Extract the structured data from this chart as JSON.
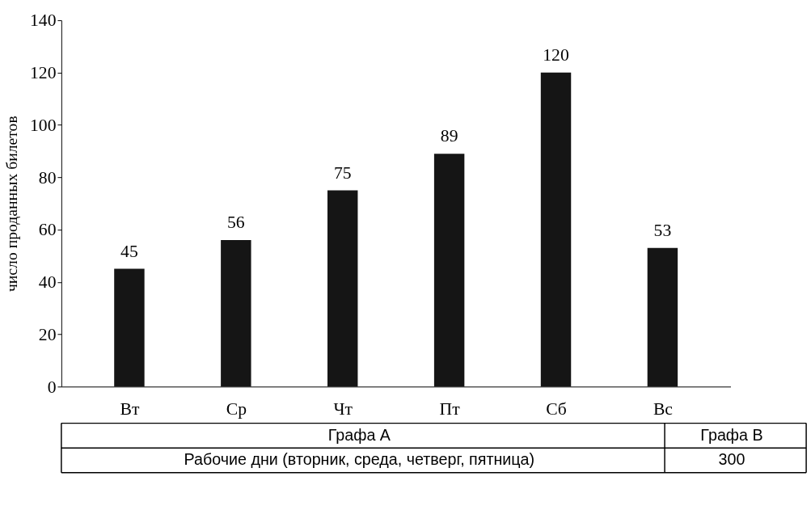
{
  "chart_data": {
    "type": "bar",
    "ylabel": "число проданных билетов",
    "categories": [
      "Вт",
      "Ср",
      "Чт",
      "Пт",
      "Сб",
      "Вс"
    ],
    "values": [
      45,
      56,
      75,
      89,
      120,
      53
    ],
    "color": "#151515",
    "ylim": [
      0,
      140
    ],
    "yticks": [
      0,
      20,
      40,
      60,
      80,
      100,
      120,
      140
    ],
    "grid": false,
    "data_labels": true,
    "annotations": [
      "Графа А",
      "Графа В",
      "Рабочие дни (вторник, среда, четверг, пятница)",
      "300"
    ]
  }
}
